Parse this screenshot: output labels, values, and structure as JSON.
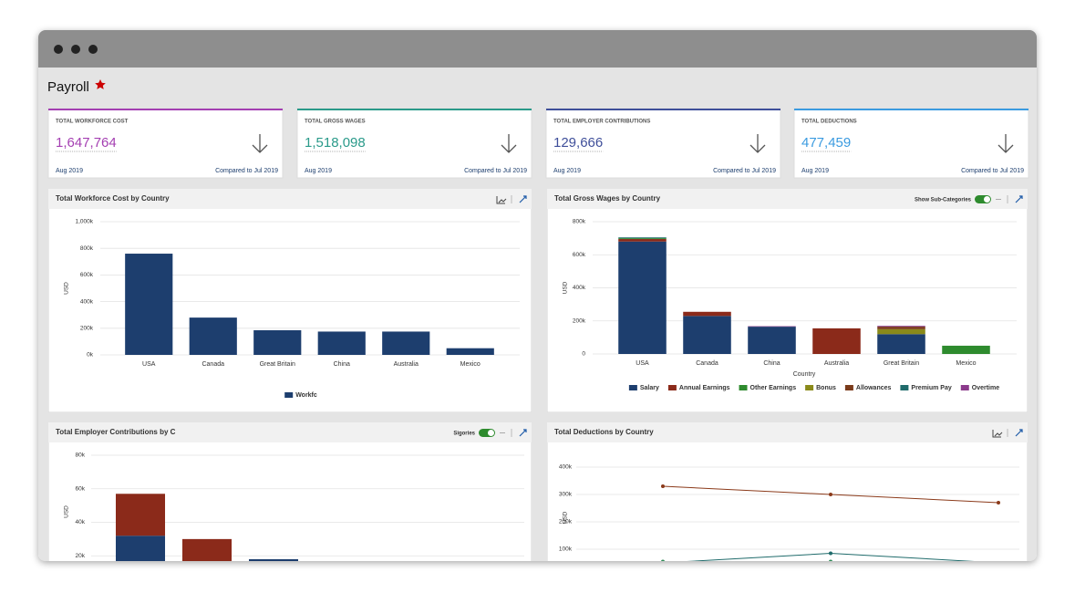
{
  "page_title": "Payroll",
  "kpis": [
    {
      "label": "TOTAL WORKFORCE COST",
      "value": "1,647,764",
      "period": "Aug 2019",
      "comparison": "Compared to Jul 2019",
      "color": "#a43fb2"
    },
    {
      "label": "TOTAL GROSS WAGES",
      "value": "1,518,098",
      "period": "Aug 2019",
      "comparison": "Compared to Jul 2019",
      "color": "#2a9a8a"
    },
    {
      "label": "TOTAL EMPLOYER CONTRIBUTIONS",
      "value": "129,666",
      "period": "Aug 2019",
      "comparison": "Compared to Jul 2019",
      "color": "#3f4f9a"
    },
    {
      "label": "TOTAL DEDUCTIONS",
      "value": "477,459",
      "period": "Aug 2019",
      "comparison": "Compared to Jul 2019",
      "color": "#3b9be0"
    }
  ],
  "chart_data": [
    {
      "type": "bar",
      "title": "Total Workforce Cost by Country",
      "ylabel": "USD",
      "categories": [
        "USA",
        "Canada",
        "Great Britain",
        "China",
        "Australia",
        "Mexico"
      ],
      "series": [
        {
          "name": "Workfc",
          "color": "#1d3e6e",
          "values": [
            760000,
            280000,
            185000,
            175000,
            175000,
            50000
          ]
        }
      ],
      "ylim": [
        0,
        1000000
      ],
      "yticks": [
        {
          "value": 0,
          "label": "0k"
        },
        {
          "value": 200000,
          "label": "200k"
        },
        {
          "value": 400000,
          "label": "400k"
        },
        {
          "value": 600000,
          "label": "600k"
        },
        {
          "value": 800000,
          "label": "800k"
        },
        {
          "value": 1000000,
          "label": "1,000k"
        }
      ],
      "grid": true
    },
    {
      "type": "bar",
      "title": "Total Gross Wages by Country",
      "toggle": "Show Sub-Categories",
      "ylabel": "USD",
      "xlabel": "Country",
      "categories": [
        "USA",
        "Canada",
        "China",
        "Australia",
        "Great Britain",
        "Mexico"
      ],
      "series": [
        {
          "name": "Salary",
          "color": "#1d3e6e",
          "values": [
            680000,
            230000,
            165000,
            0,
            120000,
            0
          ]
        },
        {
          "name": "Annual Earnings",
          "color": "#8b2a1a",
          "values": [
            15000,
            25000,
            0,
            155000,
            0,
            0
          ]
        },
        {
          "name": "Other Earnings",
          "color": "#2e8b2e",
          "values": [
            5000,
            0,
            0,
            0,
            0,
            50000
          ]
        },
        {
          "name": "Bonus",
          "color": "#8a8a1a",
          "values": [
            0,
            0,
            0,
            0,
            30000,
            0
          ]
        },
        {
          "name": "Allowances",
          "color": "#7a3a1a",
          "values": [
            0,
            0,
            0,
            0,
            15000,
            0
          ]
        },
        {
          "name": "Premium Pay",
          "color": "#1f6b6b",
          "values": [
            5000,
            0,
            0,
            0,
            0,
            0
          ]
        },
        {
          "name": "Overtime",
          "color": "#8b3a8b",
          "values": [
            0,
            0,
            3000,
            0,
            5000,
            0
          ]
        }
      ],
      "ylim": [
        0,
        800000
      ],
      "yticks": [
        0,
        {
          "value": 200000,
          "label": "200k"
        },
        {
          "value": 400000,
          "label": "400k"
        },
        {
          "value": 600000,
          "label": "600k"
        },
        {
          "value": 800000,
          "label": "800k"
        }
      ],
      "grid": true
    },
    {
      "type": "bar",
      "title": "Total Employer Contributions by C",
      "toggle": "Sigories",
      "ylabel": "USD",
      "series": [
        {
          "color": "#1d3e6e",
          "values": [
            32000,
            0,
            18000
          ]
        },
        {
          "color": "#8b2a1a",
          "values": [
            25000,
            30000,
            0
          ]
        }
      ],
      "ylim": [
        0,
        80000
      ],
      "yticks": [
        {
          "value": 20000,
          "label": "20k"
        },
        {
          "value": 40000,
          "label": "40k"
        },
        {
          "value": 60000,
          "label": "60k"
        },
        {
          "value": 80000,
          "label": "80k"
        }
      ],
      "grid": true
    },
    {
      "type": "line",
      "title": "Total Deductions by Country",
      "ylabel": "USD",
      "series": [
        {
          "color": "#8b3a1a",
          "values": [
            330000,
            300000,
            270000
          ]
        },
        {
          "color": "#1f6b6b",
          "values": [
            50000,
            85000,
            50000
          ]
        },
        {
          "color": "#2e8b57",
          "values": [
            55000,
            55000,
            50000
          ]
        }
      ],
      "ylim": [
        0,
        400000
      ],
      "yticks": [
        {
          "value": 100000,
          "label": "100k"
        },
        {
          "value": 200000,
          "label": "200k"
        },
        {
          "value": 300000,
          "label": "300k"
        },
        {
          "value": 400000,
          "label": "400k"
        }
      ],
      "grid": true
    }
  ]
}
